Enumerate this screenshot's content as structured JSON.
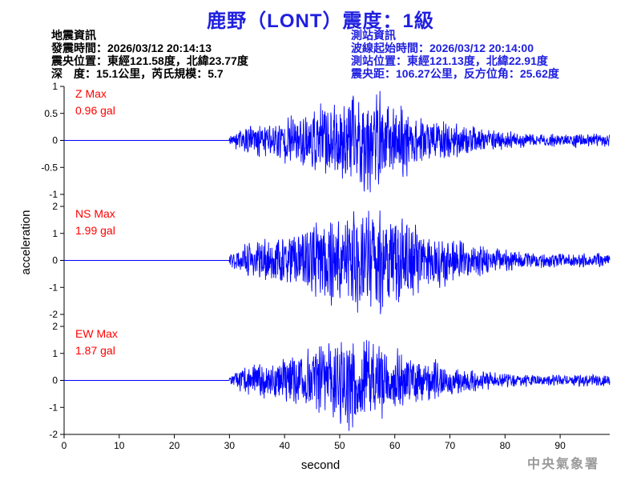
{
  "header": {
    "title": "鹿野（LONT）震度：1級"
  },
  "quake_info": {
    "lines": [
      "地震資訊",
      "發震時間：2026/03/12 20:14:13",
      "震央位置：東經121.58度，北緯23.77度",
      "深　度：15.1公里，芮氏規模：5.7"
    ]
  },
  "station_info": {
    "lines": [
      "測站資訊",
      "波線起始時間：2026/03/12 20:14:00",
      "測站位置：東經121.13度，北緯22.91度",
      "震央距：106.27公里，反方位角：25.62度"
    ]
  },
  "watermark": "中央氣象署",
  "colors": {
    "trace": "#0000ff",
    "max_label": "#ff0000",
    "title": "#1f1fe0"
  },
  "chart_data": {
    "type": "line",
    "xlabel": "second",
    "ylabel": "acceleration",
    "xlim": [
      0,
      99
    ],
    "xticks": [
      "0",
      "10",
      "20",
      "30",
      "40",
      "50",
      "60",
      "70",
      "80",
      "90"
    ],
    "panels": [
      {
        "name": "Z",
        "max_title": "Z Max",
        "max_value": "0.96 gal",
        "ylim": [
          -1,
          1
        ],
        "yticks": [
          "1",
          "0.5",
          "0",
          "-0.5",
          "-1"
        ],
        "onset": 30,
        "peak_time": 55,
        "peak_amp": 0.96,
        "tail_amp": 0.12,
        "seed": 11
      },
      {
        "name": "NS",
        "max_title": "NS Max",
        "max_value": "1.99 gal",
        "ylim": [
          -2,
          2
        ],
        "yticks": [
          "2",
          "1",
          "0",
          "-1",
          "-2"
        ],
        "onset": 30,
        "peak_time": 56,
        "peak_amp": 1.99,
        "tail_amp": 0.25,
        "seed": 23
      },
      {
        "name": "EW",
        "max_title": "EW Max",
        "max_value": "1.87 gal",
        "ylim": [
          -2,
          2
        ],
        "yticks": [
          "2",
          "1",
          "0",
          "-1",
          "-2"
        ],
        "onset": 30,
        "peak_time": 53,
        "peak_amp": 1.87,
        "tail_amp": 0.22,
        "seed": 37
      }
    ]
  }
}
